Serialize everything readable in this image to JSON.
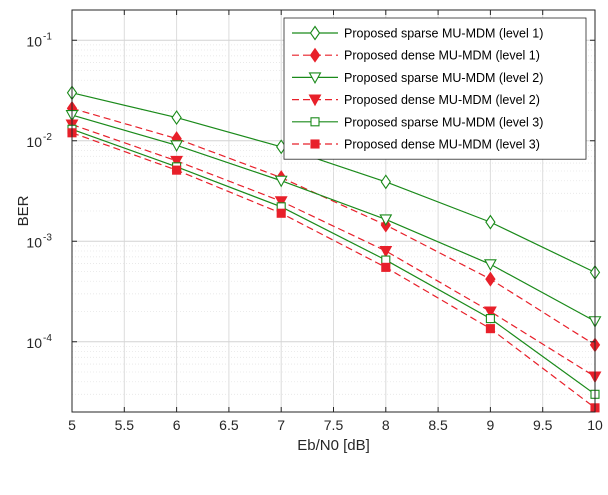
{
  "chart_data": {
    "type": "line",
    "xlabel": "Eb/N0 [dB]",
    "ylabel": "BER",
    "xlim": [
      5,
      10
    ],
    "ylim": [
      2e-05,
      0.2
    ],
    "yscale": "log",
    "grid": true,
    "legend_position": "top-right",
    "x_ticks": [
      "5",
      "5.5",
      "6",
      "6.5",
      "7",
      "7.5",
      "8",
      "8.5",
      "9",
      "9.5",
      "10"
    ],
    "y_ticks": [
      {
        "base": "10",
        "exp": "-1"
      },
      {
        "base": "10",
        "exp": "-2"
      },
      {
        "base": "10",
        "exp": "-3"
      },
      {
        "base": "10",
        "exp": "-4"
      }
    ],
    "x": [
      5,
      6,
      7,
      8,
      9,
      10
    ],
    "series": [
      {
        "name": "Proposed sparse MU-MDM (level 1)",
        "color": "#1a8a1a",
        "marker": "diamond-open",
        "dash": "solid",
        "values": [
          0.03,
          0.017,
          0.0087,
          0.0039,
          0.00155,
          0.00049
        ]
      },
      {
        "name": "Proposed dense MU-MDM (level 1)",
        "color": "#e8202a",
        "marker": "diamond-filled",
        "dash": "dashed",
        "values": [
          0.021,
          0.0105,
          0.0043,
          0.00145,
          0.00042,
          9.3e-05
        ]
      },
      {
        "name": "Proposed sparse MU-MDM (level 2)",
        "color": "#1a8a1a",
        "marker": "triangle-down-open",
        "dash": "solid",
        "values": [
          0.018,
          0.009,
          0.004,
          0.00165,
          0.00059,
          0.00016
        ]
      },
      {
        "name": "Proposed dense MU-MDM (level 2)",
        "color": "#e8202a",
        "marker": "triangle-down-filled",
        "dash": "dashed",
        "values": [
          0.0145,
          0.0063,
          0.0025,
          0.0008,
          0.0002,
          4.5e-05
        ]
      },
      {
        "name": "Proposed sparse MU-MDM (level 3)",
        "color": "#1a8a1a",
        "marker": "square-open",
        "dash": "solid",
        "values": [
          0.013,
          0.0055,
          0.0022,
          0.00065,
          0.00017,
          3e-05
        ]
      },
      {
        "name": "Proposed dense MU-MDM (level 3)",
        "color": "#e8202a",
        "marker": "square-filled",
        "dash": "dashed",
        "values": [
          0.012,
          0.0051,
          0.0019,
          0.00055,
          0.000135,
          2.2e-05
        ]
      }
    ]
  }
}
